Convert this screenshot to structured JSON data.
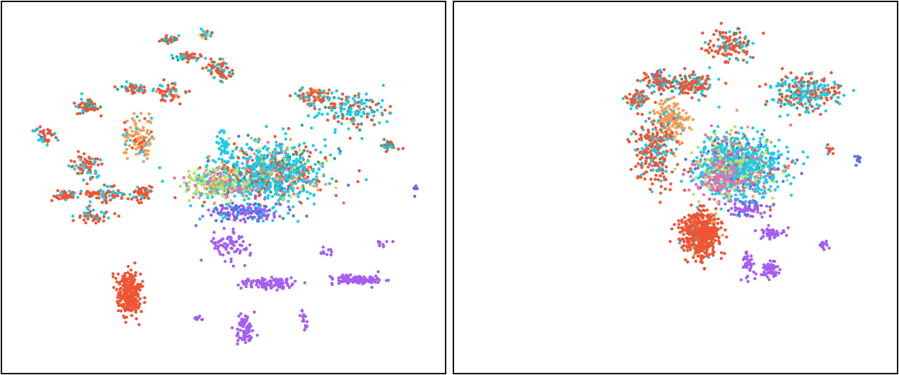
{
  "palette": {
    "red": "#ee5533",
    "cyan": "#1ecbe8",
    "orange": "#f99b55",
    "purple": "#a45ff0",
    "lime": "#b8e36a",
    "pink": "#f367b7",
    "teal": "#1aaa88",
    "blue": "#5b6ee8"
  },
  "chart_data": [
    {
      "type": "scatter",
      "title": "",
      "xlabel": "",
      "ylabel": "",
      "xlim": [
        0,
        100
      ],
      "ylim": [
        0,
        100
      ],
      "axes_visible": false,
      "grid": false,
      "legend": "none",
      "clusters": [
        {
          "cx": 37,
          "cy": 92,
          "sx": 1.0,
          "sy": 0.6,
          "n": 30,
          "mix": {
            "red": 0.5,
            "cyan": 0.3,
            "teal": 0.2
          }
        },
        {
          "cx": 46,
          "cy": 93,
          "sx": 0.8,
          "sy": 0.8,
          "n": 20,
          "mix": {
            "red": 0.5,
            "cyan": 0.4,
            "lime": 0.1
          }
        },
        {
          "cx": 42,
          "cy": 87,
          "sx": 1.6,
          "sy": 0.6,
          "n": 40,
          "mix": {
            "red": 0.6,
            "cyan": 0.3,
            "teal": 0.1
          }
        },
        {
          "cx": 49,
          "cy": 83,
          "sx": 1.6,
          "sy": 1.4,
          "n": 60,
          "mix": {
            "red": 0.6,
            "cyan": 0.3,
            "teal": 0.1
          }
        },
        {
          "cx": 29,
          "cy": 78,
          "sx": 2.0,
          "sy": 0.7,
          "n": 50,
          "mix": {
            "red": 0.5,
            "cyan": 0.4,
            "teal": 0.1
          }
        },
        {
          "cx": 37,
          "cy": 77,
          "sx": 1.6,
          "sy": 1.3,
          "n": 60,
          "mix": {
            "red": 0.6,
            "cyan": 0.3,
            "orange": 0.1
          }
        },
        {
          "cx": 18,
          "cy": 73,
          "sx": 1.5,
          "sy": 1.2,
          "n": 55,
          "mix": {
            "red": 0.7,
            "cyan": 0.2,
            "teal": 0.1
          }
        },
        {
          "cx": 8,
          "cy": 65,
          "sx": 1.4,
          "sy": 1.6,
          "n": 40,
          "mix": {
            "red": 0.6,
            "cyan": 0.3,
            "blue": 0.1
          }
        },
        {
          "cx": 30,
          "cy": 64,
          "sx": 1.6,
          "sy": 3.0,
          "n": 120,
          "mix": {
            "orange": 0.7,
            "cyan": 0.2,
            "red": 0.1
          }
        },
        {
          "cx": 18,
          "cy": 56,
          "sx": 1.5,
          "sy": 1.6,
          "n": 70,
          "mix": {
            "red": 0.5,
            "cyan": 0.45,
            "teal": 0.05
          }
        },
        {
          "cx": 13,
          "cy": 48,
          "sx": 1.6,
          "sy": 0.8,
          "n": 40,
          "mix": {
            "red": 0.7,
            "cyan": 0.3
          }
        },
        {
          "cx": 22,
          "cy": 48,
          "sx": 2.6,
          "sy": 1.1,
          "n": 70,
          "mix": {
            "red": 0.6,
            "cyan": 0.4
          }
        },
        {
          "cx": 31,
          "cy": 48,
          "sx": 1.4,
          "sy": 1.0,
          "n": 50,
          "mix": {
            "red": 0.7,
            "cyan": 0.3
          }
        },
        {
          "cx": 19,
          "cy": 42,
          "sx": 2.0,
          "sy": 0.9,
          "n": 50,
          "mix": {
            "red": 0.7,
            "cyan": 0.3
          }
        },
        {
          "cx": 71,
          "cy": 76,
          "sx": 2.6,
          "sy": 1.2,
          "n": 80,
          "mix": {
            "red": 0.5,
            "cyan": 0.4,
            "orange": 0.1
          }
        },
        {
          "cx": 80,
          "cy": 72,
          "sx": 4.5,
          "sy": 2.6,
          "n": 150,
          "mix": {
            "cyan": 0.5,
            "red": 0.4,
            "teal": 0.1
          }
        },
        {
          "cx": 89,
          "cy": 62,
          "sx": 1.2,
          "sy": 0.8,
          "n": 30,
          "mix": {
            "red": 0.6,
            "cyan": 0.3,
            "teal": 0.1
          }
        },
        {
          "cx": 60,
          "cy": 54,
          "sx": 7.0,
          "sy": 4.2,
          "n": 900,
          "mix": {
            "cyan": 0.55,
            "red": 0.15,
            "orange": 0.1,
            "teal": 0.08,
            "lime": 0.06,
            "blue": 0.03,
            "pink": 0.03
          }
        },
        {
          "cx": 48,
          "cy": 51,
          "sx": 4.0,
          "sy": 2.0,
          "n": 220,
          "mix": {
            "lime": 0.45,
            "pink": 0.2,
            "cyan": 0.2,
            "orange": 0.15
          }
        },
        {
          "cx": 55,
          "cy": 43,
          "sx": 4.5,
          "sy": 1.3,
          "n": 160,
          "mix": {
            "blue": 0.4,
            "purple": 0.4,
            "cyan": 0.2
          }
        },
        {
          "cx": 50,
          "cy": 62,
          "sx": 0.5,
          "sy": 2.2,
          "n": 35,
          "mix": {
            "cyan": 1.0
          }
        },
        {
          "cx": 51,
          "cy": 33,
          "sx": 2.8,
          "sy": 2.4,
          "n": 70,
          "mix": {
            "purple": 1.0
          }
        },
        {
          "cx": 28,
          "cy": 20,
          "sx": 1.4,
          "sy": 3.2,
          "n": 260,
          "mix": {
            "red": 1.0
          }
        },
        {
          "cx": 60,
          "cy": 23,
          "sx": 3.6,
          "sy": 0.8,
          "n": 110,
          "mix": {
            "purple": 1.0
          }
        },
        {
          "cx": 81,
          "cy": 24,
          "sx": 3.2,
          "sy": 0.7,
          "n": 110,
          "mix": {
            "purple": 1.0
          }
        },
        {
          "cx": 55,
          "cy": 10,
          "sx": 1.1,
          "sy": 2.6,
          "n": 80,
          "mix": {
            "purple": 1.0
          }
        },
        {
          "cx": 69,
          "cy": 12,
          "sx": 0.4,
          "sy": 1.5,
          "n": 16,
          "mix": {
            "purple": 1.0
          }
        },
        {
          "cx": 44,
          "cy": 13,
          "sx": 0.7,
          "sy": 0.4,
          "n": 8,
          "mix": {
            "purple": 1.0
          }
        },
        {
          "cx": 74,
          "cy": 32,
          "sx": 0.8,
          "sy": 0.8,
          "n": 12,
          "mix": {
            "purple": 1.0
          }
        },
        {
          "cx": 87,
          "cy": 34,
          "sx": 0.8,
          "sy": 0.6,
          "n": 10,
          "mix": {
            "purple": 1.0
          }
        },
        {
          "cx": 95,
          "cy": 49,
          "sx": 0.3,
          "sy": 0.8,
          "n": 6,
          "mix": {
            "blue": 1.0
          }
        }
      ]
    },
    {
      "type": "scatter",
      "title": "",
      "xlabel": "",
      "ylabel": "",
      "xlim": [
        0,
        100
      ],
      "ylim": [
        0,
        100
      ],
      "axes_visible": false,
      "grid": false,
      "legend": "none",
      "clusters": [
        {
          "cx": 63,
          "cy": 90,
          "sx": 2.6,
          "sy": 2.2,
          "n": 130,
          "mix": {
            "red": 0.7,
            "cyan": 0.25,
            "teal": 0.05
          }
        },
        {
          "cx": 46,
          "cy": 80,
          "sx": 1.6,
          "sy": 1.4,
          "n": 90,
          "mix": {
            "red": 0.7,
            "cyan": 0.2,
            "blue": 0.1
          }
        },
        {
          "cx": 54,
          "cy": 79,
          "sx": 2.6,
          "sy": 1.6,
          "n": 130,
          "mix": {
            "red": 0.6,
            "cyan": 0.3,
            "teal": 0.1
          }
        },
        {
          "cx": 41,
          "cy": 75,
          "sx": 1.4,
          "sy": 1.1,
          "n": 60,
          "mix": {
            "red": 0.7,
            "cyan": 0.3
          }
        },
        {
          "cx": 80,
          "cy": 77,
          "sx": 4.0,
          "sy": 2.6,
          "n": 240,
          "mix": {
            "cyan": 0.55,
            "red": 0.4,
            "teal": 0.05
          }
        },
        {
          "cx": 49,
          "cy": 69,
          "sx": 2.0,
          "sy": 3.0,
          "n": 170,
          "mix": {
            "orange": 0.85,
            "cyan": 0.1,
            "red": 0.05
          }
        },
        {
          "cx": 45,
          "cy": 60,
          "sx": 2.4,
          "sy": 4.5,
          "n": 230,
          "mix": {
            "red": 0.7,
            "cyan": 0.3
          }
        },
        {
          "cx": 65,
          "cy": 56,
          "sx": 5.2,
          "sy": 4.2,
          "n": 950,
          "mix": {
            "cyan": 0.6,
            "lime": 0.12,
            "red": 0.08,
            "pink": 0.08,
            "orange": 0.06,
            "blue": 0.06
          }
        },
        {
          "cx": 61,
          "cy": 52,
          "sx": 3.0,
          "sy": 2.5,
          "n": 170,
          "mix": {
            "pink": 0.6,
            "lime": 0.3,
            "cyan": 0.1
          }
        },
        {
          "cx": 67,
          "cy": 44,
          "sx": 2.2,
          "sy": 1.3,
          "n": 70,
          "mix": {
            "purple": 0.8,
            "blue": 0.2
          }
        },
        {
          "cx": 56,
          "cy": 37,
          "sx": 2.3,
          "sy": 3.4,
          "n": 550,
          "mix": {
            "red": 0.95,
            "cyan": 0.03,
            "orange": 0.02
          }
        },
        {
          "cx": 72,
          "cy": 37,
          "sx": 1.8,
          "sy": 0.8,
          "n": 50,
          "mix": {
            "purple": 1.0
          }
        },
        {
          "cx": 67,
          "cy": 28,
          "sx": 0.8,
          "sy": 1.8,
          "n": 40,
          "mix": {
            "purple": 1.0
          }
        },
        {
          "cx": 72,
          "cy": 27,
          "sx": 1.3,
          "sy": 1.3,
          "n": 50,
          "mix": {
            "purple": 1.0
          }
        },
        {
          "cx": 85,
          "cy": 34,
          "sx": 0.5,
          "sy": 0.6,
          "n": 15,
          "mix": {
            "purple": 1.0
          }
        },
        {
          "cx": 93,
          "cy": 58,
          "sx": 0.5,
          "sy": 0.5,
          "n": 10,
          "mix": {
            "blue": 1.0
          }
        },
        {
          "cx": 86,
          "cy": 61,
          "sx": 0.5,
          "sy": 0.8,
          "n": 12,
          "mix": {
            "red": 0.7,
            "cyan": 0.3
          }
        }
      ]
    }
  ]
}
